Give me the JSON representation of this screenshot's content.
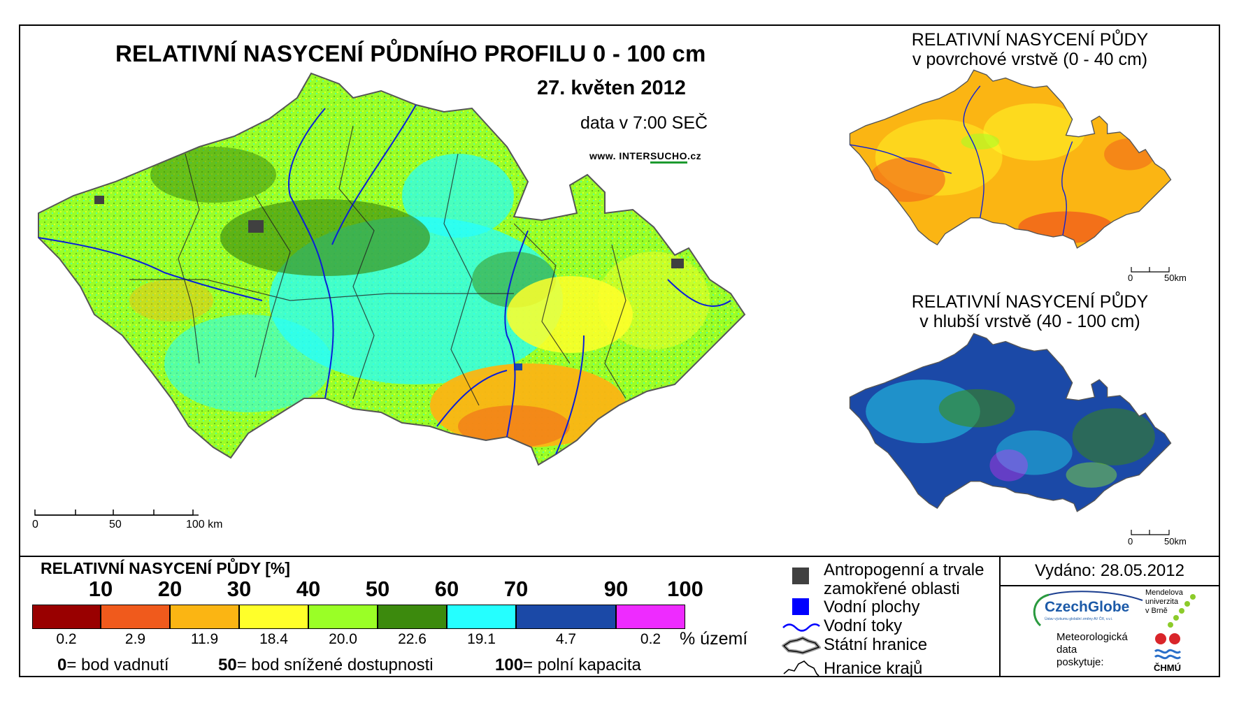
{
  "main": {
    "title": "RELATIVNÍ NASYCENÍ PŮDNÍHO PROFILU 0 - 100 cm",
    "date": "27. květen 2012",
    "time": "data v 7:00 SEČ",
    "url_prefix": "www. INTER",
    "url_mid": "SUCHO",
    "url_suffix": ".cz",
    "scale": {
      "l0": "0",
      "l50": "50",
      "l100": "100 km"
    }
  },
  "inset_surface": {
    "title_line1": "RELATIVNÍ NASYCENÍ PŮDY",
    "title_line2": "v povrchové vrstvě (0 - 40 cm)",
    "scale": {
      "l0": "0",
      "l50": "50km"
    }
  },
  "inset_deep": {
    "title_line1": "RELATIVNÍ NASYCENÍ PŮDY",
    "title_line2": "v hlubší vrstvě (40 - 100 cm)",
    "scale": {
      "l0": "0",
      "l50": "50km"
    }
  },
  "legend": {
    "title": "RELATIVNÍ NASYCENÍ PŮDY [%]",
    "ticks": [
      "10",
      "20",
      "30",
      "40",
      "50",
      "60",
      "70",
      "90",
      "100"
    ],
    "classes": [
      {
        "color": "#990000",
        "pct": "0.2"
      },
      {
        "color": "#f05a1c",
        "pct": "2.9"
      },
      {
        "color": "#fbb513",
        "pct": "11.9"
      },
      {
        "color": "#ffff2a",
        "pct": "18.4"
      },
      {
        "color": "#9aff26",
        "pct": "20.0"
      },
      {
        "color": "#3c8a0d",
        "pct": "22.6"
      },
      {
        "color": "#25ffff",
        "pct": "19.1"
      },
      {
        "color": "#1b49a7",
        "pct": "4.7"
      },
      {
        "color": "#ee2bff",
        "pct": "0.2"
      }
    ],
    "pct_unit": "% území",
    "notes": [
      {
        "num": "0",
        "text": "= bod vadnutí"
      },
      {
        "num": "50",
        "text": "= bod snížené dostupnosti"
      },
      {
        "num": "100",
        "text": "= polní kapacita"
      }
    ]
  },
  "map_key": {
    "anthropogenic_line1": "Antropogenní a trvale",
    "anthropogenic_line2": "zamokřené oblasti",
    "water_bodies": "Vodní plochy",
    "water_courses": "Vodní toky",
    "state_border": "Státní hranice",
    "region_border": "Hranice krajů",
    "colors": {
      "anthropogenic": "#404040",
      "water_body": "#0000ff",
      "water_course": "#0000ff"
    }
  },
  "credits": {
    "issued": "Vydáno: 28.05.2012",
    "czechglobe": "CzechGlobe",
    "czechglobe_sub": "Ústav výzkumu globální změny AV ČR, v.v.i.",
    "mendel_line1": "Mendelova",
    "mendel_line2": "univerzita",
    "mendel_line3": "v Brně",
    "meteo_line1": "Meteorologická",
    "meteo_line2": "data",
    "meteo_line3": "poskytuje:",
    "chmu": "ČHMÚ"
  }
}
